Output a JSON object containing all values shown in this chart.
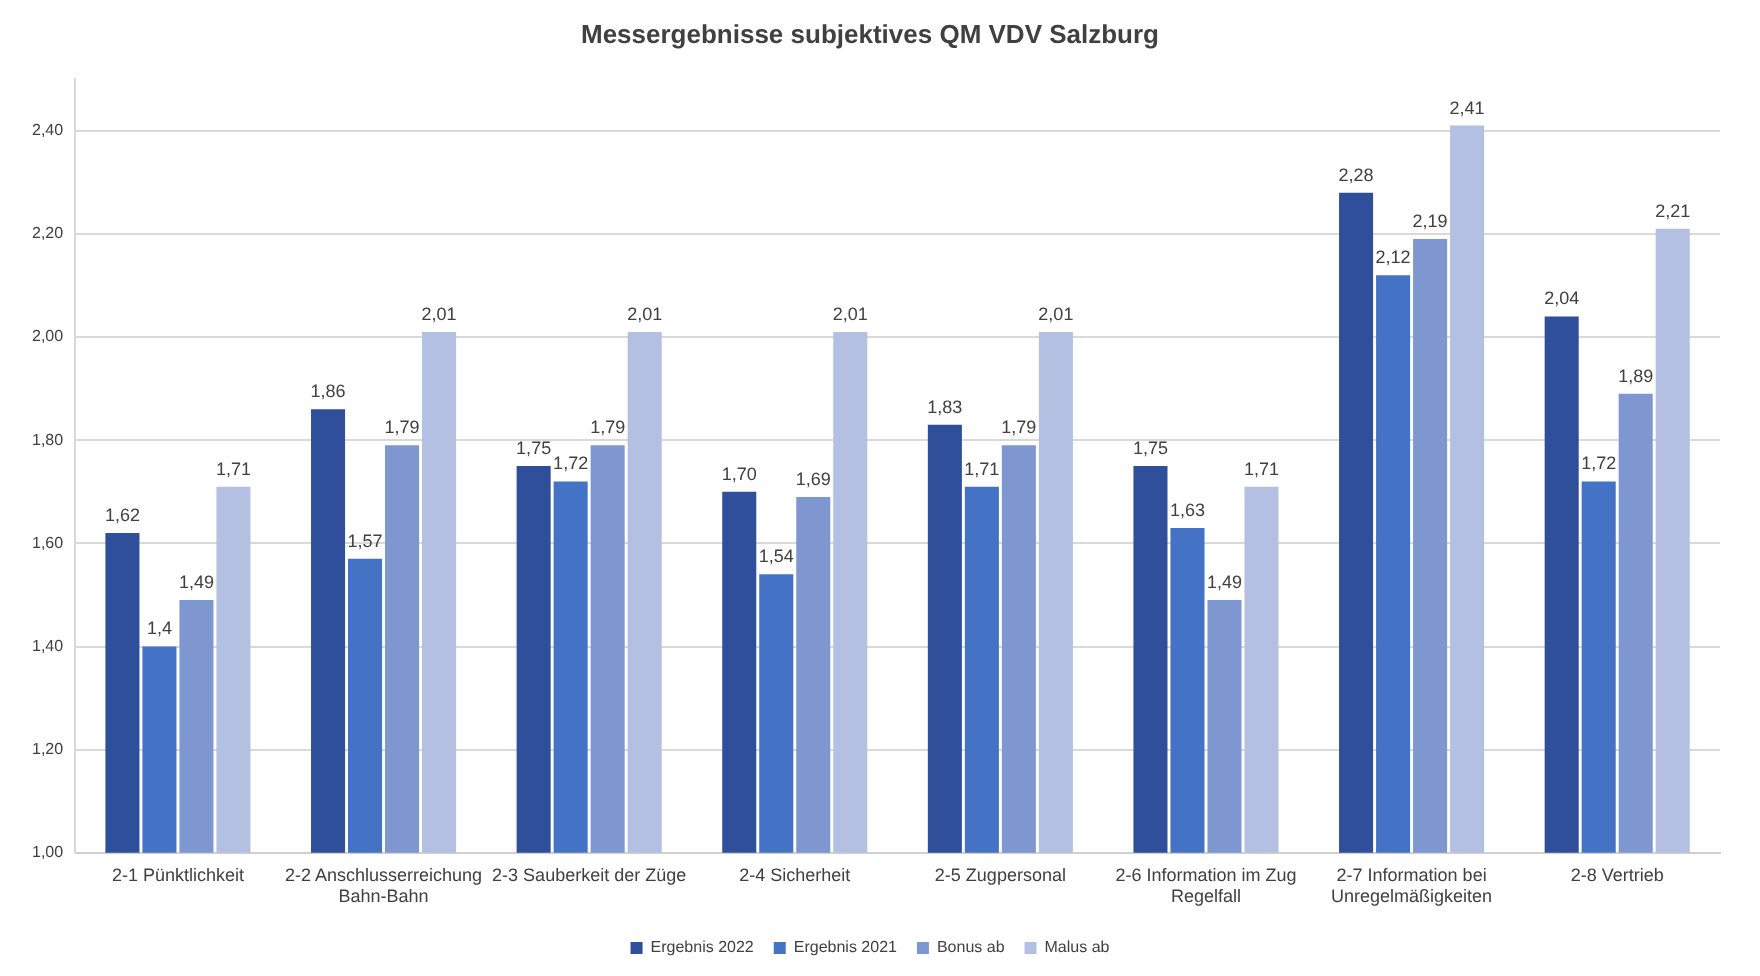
{
  "chart_data": {
    "type": "bar",
    "title": "Messergebnisse subjektives QM VDV Salzburg",
    "categories": [
      "2-1 Pünktlichkeit",
      "2-2 Anschlusserreichung Bahn-Bahn",
      "2-3 Sauberkeit der Züge",
      "2-4 Sicherheit",
      "2-5 Zugpersonal",
      "2-6 Information im Zug Regelfall",
      "2-7 Information bei Unregelmäßigkeiten",
      "2-8 Vertrieb"
    ],
    "series": [
      {
        "name": "Ergebnis 2022",
        "color": "#2f4f9a",
        "values": [
          1.62,
          1.86,
          1.75,
          1.7,
          1.83,
          1.75,
          2.28,
          2.04
        ],
        "value_labels": [
          "1,62",
          "1,86",
          "1,75",
          "1,70",
          "1,83",
          "1,75",
          "2,28",
          "2,04"
        ]
      },
      {
        "name": "Ergebnis 2021",
        "color": "#4472c4",
        "values": [
          1.4,
          1.57,
          1.72,
          1.54,
          1.71,
          1.63,
          2.12,
          1.72
        ],
        "value_labels": [
          "1,4",
          "1,57",
          "1,72",
          "1,54",
          "1,71",
          "1,63",
          "2,12",
          "1,72"
        ]
      },
      {
        "name": "Bonus ab",
        "color": "#7f97d0",
        "values": [
          1.49,
          1.79,
          1.79,
          1.69,
          1.79,
          1.49,
          2.19,
          1.89
        ],
        "value_labels": [
          "1,49",
          "1,79",
          "1,79",
          "1,69",
          "1,79",
          "1,49",
          "2,19",
          "1,89"
        ]
      },
      {
        "name": "Malus ab",
        "color": "#b4c0e2",
        "values": [
          1.71,
          2.01,
          2.01,
          2.01,
          2.01,
          1.71,
          2.41,
          2.21
        ],
        "value_labels": [
          "1,71",
          "2,01",
          "2,01",
          "2,01",
          "2,01",
          "1,71",
          "2,41",
          "2,21"
        ]
      }
    ],
    "ylim": [
      1,
      2.5
    ],
    "yticks": [
      {
        "value": 1,
        "label": "1,00"
      },
      {
        "value": 1.2,
        "label": "1,20"
      },
      {
        "value": 1.4,
        "label": "1,40"
      },
      {
        "value": 1.6,
        "label": "1,60"
      },
      {
        "value": 1.8,
        "label": "1,80"
      },
      {
        "value": 2,
        "label": "2,00"
      },
      {
        "value": 2.2,
        "label": "2,20"
      },
      {
        "value": 2.4,
        "label": "2,40"
      }
    ],
    "grid": "y",
    "legend": "bottom"
  }
}
